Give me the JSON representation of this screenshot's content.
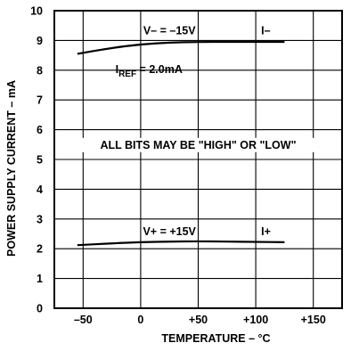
{
  "chart_data": {
    "type": "line",
    "xlabel": "TEMPERATURE – °C",
    "ylabel": "POWER SUPPLY CURRENT – mA",
    "xlim": [
      -75,
      175
    ],
    "ylim": [
      0,
      10
    ],
    "x_ticks": [
      -50,
      0,
      50,
      100,
      150
    ],
    "x_tick_labels": [
      "–50",
      "0",
      "+50",
      "+100",
      "+150"
    ],
    "y_ticks": [
      0,
      1,
      2,
      3,
      4,
      5,
      6,
      7,
      8,
      9,
      10
    ],
    "y_tick_labels": [
      "0",
      "1",
      "2",
      "3",
      "4",
      "5",
      "6",
      "7",
      "8",
      "9",
      "10"
    ],
    "grid": true,
    "series": [
      {
        "name": "I–",
        "x": [
          -55,
          -25,
          0,
          25,
          50,
          75,
          100,
          125
        ],
        "y": [
          8.55,
          8.75,
          8.87,
          8.93,
          8.95,
          8.95,
          8.95,
          8.95
        ]
      },
      {
        "name": "I+",
        "x": [
          -55,
          -25,
          0,
          25,
          50,
          75,
          100,
          125
        ],
        "y": [
          2.12,
          2.18,
          2.22,
          2.24,
          2.25,
          2.24,
          2.23,
          2.22
        ]
      }
    ],
    "annotations": {
      "vminus": "V– = –15V",
      "iref_prefix": "I",
      "iref_sub": "REF",
      "iref_suffix": " = 2.0mA",
      "vplus": "V+ = +15V",
      "note": "ALL BITS MAY BE \"HIGH\" OR \"LOW\""
    }
  }
}
